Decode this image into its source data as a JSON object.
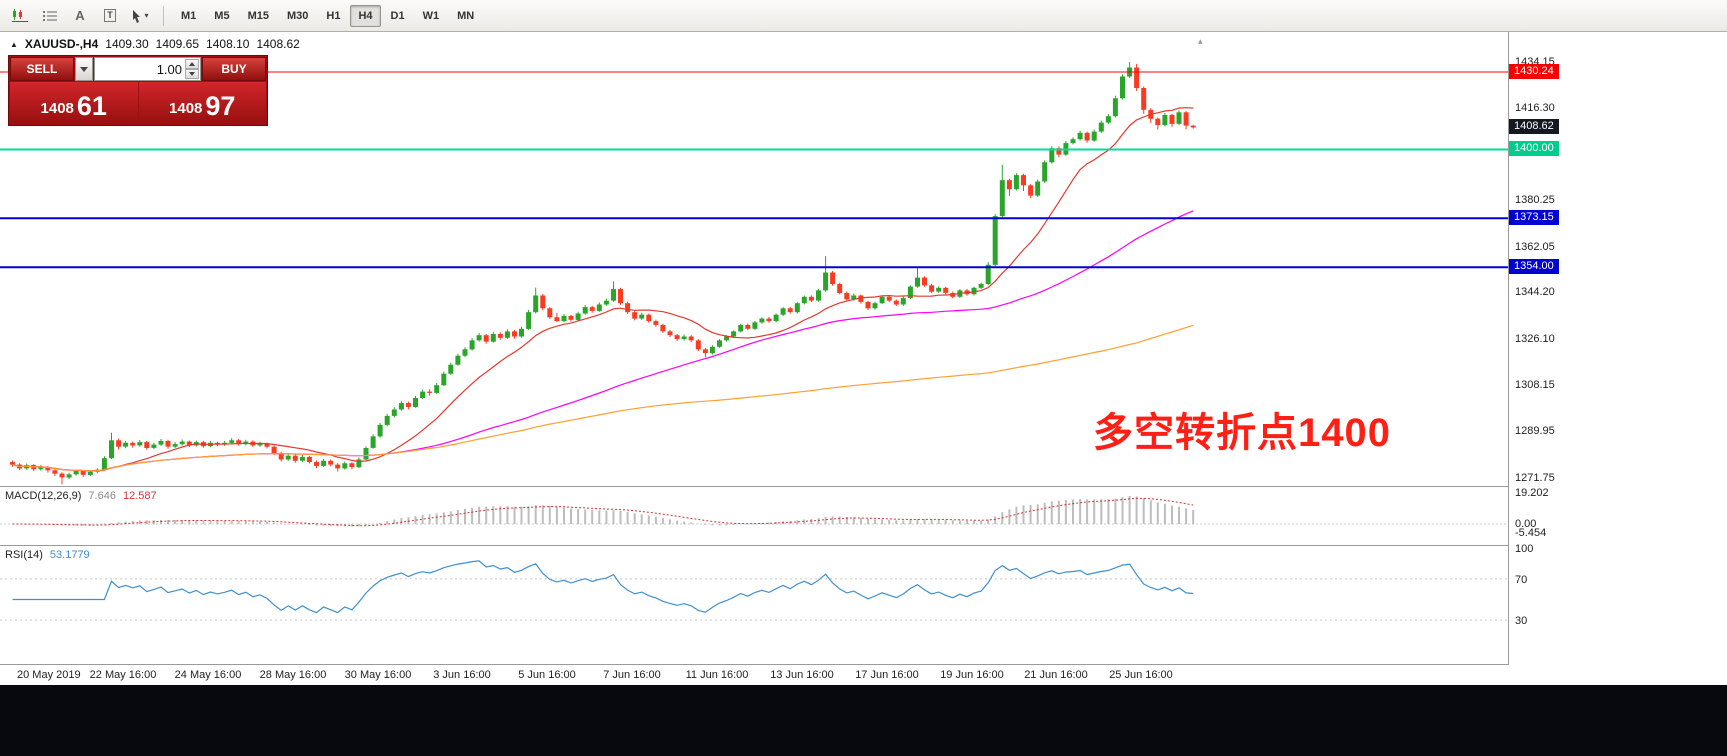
{
  "toolbar": {
    "tools": [
      {
        "name": "indicator-chart-icon"
      },
      {
        "name": "object-list-icon"
      },
      {
        "name": "label-tool-icon",
        "glyph": "A"
      },
      {
        "name": "text-tool-icon",
        "glyph": "T"
      },
      {
        "name": "cursor-tool-icon"
      }
    ],
    "timeframes": [
      {
        "label": "M1"
      },
      {
        "label": "M5"
      },
      {
        "label": "M15"
      },
      {
        "label": "M30"
      },
      {
        "label": "H1"
      },
      {
        "label": "H4"
      },
      {
        "label": "D1"
      },
      {
        "label": "W1"
      },
      {
        "label": "MN"
      }
    ],
    "active_timeframe": "H4"
  },
  "chart": {
    "header": {
      "collapse_glyph": "▲",
      "symbol": "XAUUSD-,H4",
      "open": "1409.30",
      "high": "1409.65",
      "low": "1408.10",
      "close": "1408.62"
    },
    "expand_glyph": "▴",
    "trade_panel": {
      "sell_label": "SELL",
      "buy_label": "BUY",
      "volume": "1.00",
      "bid_main": "1408",
      "bid_pips": "61",
      "ask_main": "1408",
      "ask_pips": "97"
    },
    "annotation": {
      "text": "多空转折点1400",
      "color": "#ff1f14"
    },
    "hlines": [
      {
        "price": 1430.24,
        "color": "#ff0000",
        "width": 1
      },
      {
        "price": 1400.0,
        "color": "#00dc9b",
        "width": 2
      },
      {
        "price": 1373.15,
        "color": "#0000d2",
        "width": 2
      },
      {
        "price": 1354.0,
        "color": "#0000d2",
        "width": 2
      }
    ],
    "price_axis": {
      "ticks": [
        "1434.15",
        "1416.30",
        "1380.25",
        "1362.05",
        "1344.20",
        "1326.10",
        "1308.15",
        "1289.95",
        "1271.75"
      ],
      "badges": [
        {
          "text": "1430.24",
          "bg": "#f60000"
        },
        {
          "text": "1408.62",
          "bg": "#141820"
        },
        {
          "text": "1400.00",
          "bg": "#00cc8e"
        },
        {
          "text": "1373.15",
          "bg": "#0000d2"
        },
        {
          "text": "1354.00",
          "bg": "#0000d2"
        }
      ]
    },
    "time_axis": {
      "ticks": [
        {
          "label": "20 May 2019",
          "i": 1
        },
        {
          "label": "22 May 16:00",
          "i": 16
        },
        {
          "label": "24 May 16:00",
          "i": 28
        },
        {
          "label": "28 May 16:00",
          "i": 40
        },
        {
          "label": "30 May 16:00",
          "i": 52
        },
        {
          "label": "3 Jun 16:00",
          "i": 64
        },
        {
          "label": "5 Jun 16:00",
          "i": 76
        },
        {
          "label": "7 Jun 16:00",
          "i": 88
        },
        {
          "label": "11 Jun 16:00",
          "i": 100
        },
        {
          "label": "13 Jun 16:00",
          "i": 112
        },
        {
          "label": "17 Jun 16:00",
          "i": 124
        },
        {
          "label": "19 Jun 16:00",
          "i": 136
        },
        {
          "label": "21 Jun 16:00",
          "i": 148
        },
        {
          "label": "25 Jun 16:00",
          "i": 160
        }
      ]
    }
  },
  "indicators": {
    "macd": {
      "name": "MACD(12,26,9)",
      "main_value": "7.646",
      "signal_value": "12.587",
      "fast": 12,
      "slow": 26,
      "signal": 9,
      "scale": [
        "19.202",
        "0.00",
        "-5.454"
      ]
    },
    "rsi": {
      "name": "RSI(14)",
      "value": "53.1779",
      "period": 14,
      "levels": [
        70,
        30
      ],
      "scale": [
        "100",
        "70",
        "30"
      ]
    }
  },
  "colors": {
    "candle_up": "#2aa52a",
    "candle_down": "#fb3a22",
    "macd_hist": "#bdbdbd",
    "macd_signal": "#d43434",
    "rsi_line": "#3e8fd0",
    "grid": "#c8c8c8"
  },
  "chart_data": {
    "type": "candlestick",
    "symbol": "XAUUSD",
    "timeframe": "H4",
    "ohlc_current": {
      "open": 1409.3,
      "high": 1409.65,
      "low": 1408.1,
      "close": 1408.62
    },
    "y_range": [
      1271.75,
      1434.15
    ],
    "moving_averages": [
      {
        "name": "fast",
        "period": 13,
        "color": "#e23a2e"
      },
      {
        "name": "medium",
        "period": 55,
        "color": "#ff00ff"
      },
      {
        "name": "slow",
        "period": 160,
        "color": "#ffa030"
      }
    ],
    "candles": [
      [
        1278.0,
        1278.6,
        1276.2,
        1277.0
      ],
      [
        1277.0,
        1277.5,
        1274.8,
        1275.5
      ],
      [
        1275.5,
        1277.4,
        1275.0,
        1276.8
      ],
      [
        1276.8,
        1277.2,
        1274.5,
        1275.2
      ],
      [
        1275.2,
        1276.8,
        1274.6,
        1276.0
      ],
      [
        1276.0,
        1276.5,
        1273.9,
        1274.8
      ],
      [
        1274.8,
        1275.2,
        1272.6,
        1273.5
      ],
      [
        1273.5,
        1274.0,
        1269.3,
        1272.0
      ],
      [
        1272.0,
        1273.8,
        1271.4,
        1273.2
      ],
      [
        1273.2,
        1275.1,
        1272.7,
        1274.5
      ],
      [
        1274.5,
        1274.9,
        1272.2,
        1273.0
      ],
      [
        1273.0,
        1274.8,
        1272.5,
        1274.2
      ],
      [
        1274.2,
        1275.6,
        1273.6,
        1275.0
      ],
      [
        1275.0,
        1280.3,
        1274.7,
        1279.5
      ],
      [
        1279.5,
        1289.4,
        1279.2,
        1286.5
      ],
      [
        1286.5,
        1287.2,
        1282.9,
        1284.0
      ],
      [
        1284.0,
        1286.3,
        1283.4,
        1285.5
      ],
      [
        1285.5,
        1286.0,
        1283.6,
        1284.5
      ],
      [
        1284.5,
        1286.6,
        1284.0,
        1285.8
      ],
      [
        1285.8,
        1286.2,
        1282.8,
        1283.5
      ],
      [
        1283.5,
        1285.5,
        1283.0,
        1284.8
      ],
      [
        1284.8,
        1287.0,
        1284.3,
        1286.2
      ],
      [
        1286.2,
        1286.7,
        1283.2,
        1284.0
      ],
      [
        1284.0,
        1285.8,
        1283.5,
        1285.0
      ],
      [
        1285.0,
        1286.8,
        1284.4,
        1286.0
      ],
      [
        1286.0,
        1286.4,
        1283.8,
        1284.5
      ],
      [
        1284.5,
        1286.4,
        1284.0,
        1285.8
      ],
      [
        1285.8,
        1286.3,
        1283.6,
        1284.2
      ],
      [
        1284.2,
        1286.2,
        1283.8,
        1285.5
      ],
      [
        1285.5,
        1286.0,
        1284.1,
        1284.8
      ],
      [
        1284.8,
        1286.2,
        1284.3,
        1285.5
      ],
      [
        1285.5,
        1287.3,
        1285.0,
        1286.5
      ],
      [
        1286.5,
        1287.0,
        1284.4,
        1285.0
      ],
      [
        1285.0,
        1286.7,
        1284.5,
        1286.0
      ],
      [
        1286.0,
        1286.5,
        1283.9,
        1284.5
      ],
      [
        1284.5,
        1286.0,
        1284.0,
        1285.2
      ],
      [
        1285.2,
        1285.6,
        1283.3,
        1284.0
      ],
      [
        1284.0,
        1284.5,
        1280.8,
        1281.5
      ],
      [
        1281.5,
        1282.0,
        1278.2,
        1279.0
      ],
      [
        1279.0,
        1281.3,
        1278.5,
        1280.5
      ],
      [
        1280.5,
        1281.0,
        1277.7,
        1278.5
      ],
      [
        1278.5,
        1280.7,
        1278.0,
        1280.0
      ],
      [
        1280.0,
        1280.4,
        1277.4,
        1278.0
      ],
      [
        1278.0,
        1278.6,
        1275.6,
        1276.5
      ],
      [
        1276.5,
        1279.2,
        1276.0,
        1278.5
      ],
      [
        1278.5,
        1279.0,
        1276.3,
        1277.0
      ],
      [
        1277.0,
        1277.6,
        1274.3,
        1275.5
      ],
      [
        1275.5,
        1278.2,
        1275.0,
        1277.5
      ],
      [
        1277.5,
        1277.9,
        1275.2,
        1276.0
      ],
      [
        1276.0,
        1279.8,
        1275.6,
        1279.0
      ],
      [
        1279.0,
        1284.2,
        1278.7,
        1283.5
      ],
      [
        1283.5,
        1288.8,
        1283.2,
        1288.0
      ],
      [
        1288.0,
        1293.3,
        1287.6,
        1292.5
      ],
      [
        1292.5,
        1296.8,
        1292.0,
        1296.0
      ],
      [
        1296.0,
        1299.4,
        1295.4,
        1298.5
      ],
      [
        1298.5,
        1301.9,
        1298.0,
        1301.0
      ],
      [
        1301.0,
        1301.6,
        1298.6,
        1299.5
      ],
      [
        1299.5,
        1303.8,
        1299.2,
        1303.0
      ],
      [
        1303.0,
        1306.3,
        1302.5,
        1305.5
      ],
      [
        1305.5,
        1306.4,
        1303.9,
        1305.0
      ],
      [
        1305.0,
        1308.9,
        1304.6,
        1308.0
      ],
      [
        1308.0,
        1313.3,
        1307.7,
        1312.5
      ],
      [
        1312.5,
        1316.8,
        1312.0,
        1316.0
      ],
      [
        1316.0,
        1320.3,
        1315.6,
        1319.5
      ],
      [
        1319.5,
        1322.8,
        1319.0,
        1322.0
      ],
      [
        1322.0,
        1326.4,
        1321.5,
        1325.5
      ],
      [
        1325.5,
        1328.4,
        1325.0,
        1327.5
      ],
      [
        1327.5,
        1328.0,
        1324.2,
        1325.0
      ],
      [
        1325.0,
        1328.8,
        1324.6,
        1328.0
      ],
      [
        1328.0,
        1328.6,
        1325.7,
        1326.5
      ],
      [
        1326.5,
        1329.8,
        1326.0,
        1329.0
      ],
      [
        1329.0,
        1329.6,
        1326.2,
        1327.0
      ],
      [
        1327.0,
        1330.8,
        1326.5,
        1330.0
      ],
      [
        1330.0,
        1337.4,
        1329.6,
        1336.5
      ],
      [
        1336.5,
        1346.1,
        1336.0,
        1343.0
      ],
      [
        1343.0,
        1343.6,
        1337.2,
        1338.0
      ],
      [
        1338.0,
        1338.5,
        1333.8,
        1334.5
      ],
      [
        1334.5,
        1336.2,
        1332.6,
        1333.0
      ],
      [
        1333.0,
        1335.8,
        1332.5,
        1335.0
      ],
      [
        1335.0,
        1335.5,
        1332.8,
        1333.5
      ],
      [
        1333.5,
        1336.7,
        1333.0,
        1336.0
      ],
      [
        1336.0,
        1339.3,
        1335.5,
        1338.5
      ],
      [
        1338.5,
        1339.0,
        1336.3,
        1337.0
      ],
      [
        1337.0,
        1340.3,
        1336.6,
        1339.5
      ],
      [
        1339.5,
        1341.8,
        1339.0,
        1341.0
      ],
      [
        1341.0,
        1348.5,
        1340.6,
        1345.5
      ],
      [
        1345.5,
        1346.0,
        1339.4,
        1340.0
      ],
      [
        1340.0,
        1340.6,
        1335.8,
        1336.5
      ],
      [
        1336.5,
        1337.0,
        1333.3,
        1334.0
      ],
      [
        1334.0,
        1336.3,
        1333.5,
        1335.5
      ],
      [
        1335.5,
        1335.9,
        1332.4,
        1333.0
      ],
      [
        1333.0,
        1333.6,
        1330.8,
        1331.5
      ],
      [
        1331.5,
        1332.0,
        1328.4,
        1329.0
      ],
      [
        1329.0,
        1329.6,
        1326.8,
        1327.5
      ],
      [
        1327.5,
        1328.0,
        1325.2,
        1326.0
      ],
      [
        1326.0,
        1327.8,
        1325.4,
        1327.0
      ],
      [
        1327.0,
        1327.5,
        1324.8,
        1325.5
      ],
      [
        1325.5,
        1326.0,
        1321.3,
        1322.0
      ],
      [
        1322.0,
        1322.6,
        1318.9,
        1320.5
      ],
      [
        1320.5,
        1323.6,
        1320.0,
        1323.0
      ],
      [
        1323.0,
        1326.0,
        1322.6,
        1325.5
      ],
      [
        1325.5,
        1327.5,
        1325.0,
        1327.0
      ],
      [
        1327.0,
        1329.4,
        1326.5,
        1329.0
      ],
      [
        1329.0,
        1332.0,
        1328.6,
        1331.5
      ],
      [
        1331.5,
        1332.1,
        1329.5,
        1330.0
      ],
      [
        1330.0,
        1333.0,
        1329.6,
        1332.5
      ],
      [
        1332.5,
        1334.5,
        1332.0,
        1334.0
      ],
      [
        1334.0,
        1334.6,
        1332.4,
        1333.0
      ],
      [
        1333.0,
        1336.0,
        1332.6,
        1335.5
      ],
      [
        1335.5,
        1338.5,
        1335.0,
        1338.0
      ],
      [
        1338.0,
        1338.6,
        1335.9,
        1336.5
      ],
      [
        1336.5,
        1340.4,
        1336.0,
        1340.0
      ],
      [
        1340.0,
        1343.0,
        1339.5,
        1342.5
      ],
      [
        1342.5,
        1343.1,
        1340.4,
        1341.0
      ],
      [
        1341.0,
        1345.6,
        1340.6,
        1345.0
      ],
      [
        1345.0,
        1358.4,
        1344.5,
        1352.0
      ],
      [
        1352.0,
        1352.6,
        1346.8,
        1347.5
      ],
      [
        1347.5,
        1348.0,
        1343.4,
        1344.0
      ],
      [
        1344.0,
        1344.6,
        1340.8,
        1341.5
      ],
      [
        1341.5,
        1343.8,
        1341.0,
        1343.0
      ],
      [
        1343.0,
        1343.4,
        1339.8,
        1340.5
      ],
      [
        1340.5,
        1341.0,
        1337.3,
        1338.0
      ],
      [
        1338.0,
        1340.6,
        1337.5,
        1340.0
      ],
      [
        1340.0,
        1343.0,
        1339.6,
        1342.5
      ],
      [
        1342.5,
        1343.1,
        1340.4,
        1341.0
      ],
      [
        1341.0,
        1341.5,
        1338.9,
        1339.5
      ],
      [
        1339.5,
        1342.6,
        1339.0,
        1342.0
      ],
      [
        1342.0,
        1347.0,
        1341.6,
        1346.5
      ],
      [
        1346.5,
        1354.2,
        1346.0,
        1350.0
      ],
      [
        1350.0,
        1350.5,
        1346.4,
        1347.0
      ],
      [
        1347.0,
        1347.6,
        1343.9,
        1344.5
      ],
      [
        1344.5,
        1346.6,
        1344.0,
        1346.0
      ],
      [
        1346.0,
        1346.4,
        1343.4,
        1344.0
      ],
      [
        1344.0,
        1344.6,
        1341.9,
        1342.5
      ],
      [
        1342.5,
        1345.5,
        1342.0,
        1345.0
      ],
      [
        1345.0,
        1345.6,
        1342.9,
        1343.5
      ],
      [
        1343.5,
        1346.4,
        1343.0,
        1346.0
      ],
      [
        1346.0,
        1348.0,
        1345.5,
        1347.5
      ],
      [
        1347.5,
        1356.0,
        1347.0,
        1355.0
      ],
      [
        1355.0,
        1374.8,
        1354.5,
        1374.0
      ],
      [
        1374.0,
        1394.0,
        1373.5,
        1388.0
      ],
      [
        1388.0,
        1388.6,
        1381.9,
        1384.5
      ],
      [
        1384.5,
        1390.8,
        1384.0,
        1390.0
      ],
      [
        1390.0,
        1390.6,
        1383.8,
        1386.0
      ],
      [
        1386.0,
        1386.5,
        1381.0,
        1382.0
      ],
      [
        1382.0,
        1388.3,
        1381.5,
        1387.5
      ],
      [
        1387.5,
        1395.8,
        1387.0,
        1395.0
      ],
      [
        1395.0,
        1401.3,
        1394.5,
        1400.5
      ],
      [
        1400.5,
        1401.2,
        1396.9,
        1398.0
      ],
      [
        1398.0,
        1403.3,
        1397.5,
        1402.5
      ],
      [
        1402.5,
        1404.8,
        1402.0,
        1404.0
      ],
      [
        1404.0,
        1407.3,
        1403.5,
        1406.5
      ],
      [
        1406.5,
        1407.0,
        1402.6,
        1403.5
      ],
      [
        1403.5,
        1407.8,
        1403.0,
        1407.0
      ],
      [
        1407.0,
        1411.3,
        1406.5,
        1410.5
      ],
      [
        1410.5,
        1413.8,
        1410.0,
        1413.0
      ],
      [
        1413.0,
        1421.0,
        1412.5,
        1420.0
      ],
      [
        1420.0,
        1429.3,
        1419.5,
        1428.5
      ],
      [
        1428.5,
        1434.15,
        1427.9,
        1432.0
      ],
      [
        1432.0,
        1433.4,
        1422.8,
        1424.0
      ],
      [
        1424.0,
        1424.6,
        1413.9,
        1415.5
      ],
      [
        1415.5,
        1416.1,
        1410.3,
        1412.0
      ],
      [
        1412.0,
        1412.5,
        1407.8,
        1409.5
      ],
      [
        1409.5,
        1414.3,
        1409.0,
        1413.5
      ],
      [
        1413.5,
        1414.0,
        1408.8,
        1410.0
      ],
      [
        1410.0,
        1415.2,
        1409.5,
        1414.5
      ],
      [
        1414.5,
        1415.0,
        1407.9,
        1409.3
      ],
      [
        1409.3,
        1409.65,
        1408.1,
        1408.62
      ]
    ]
  }
}
